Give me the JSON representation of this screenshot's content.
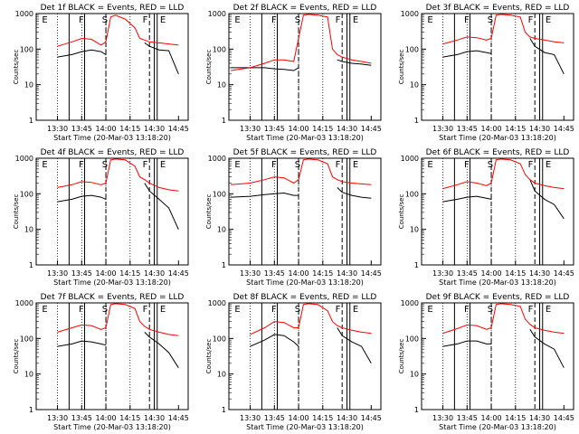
{
  "chart_data": [
    {
      "type": "line",
      "title": "Det 1f BLACK = Events, RED = LLD",
      "xlabel": "Start Time (20-Mar-03 13:18:20)",
      "ylabel": "Counts/sec",
      "yscale": "log",
      "ylim": [
        1,
        1000
      ],
      "ytick_labels": [
        "1",
        "10",
        "100",
        "1000"
      ],
      "xtick_labels": [
        "13:30",
        "13:45",
        "14:00",
        "14:15",
        "14:30",
        "14:45"
      ],
      "markers": [
        "E",
        "F",
        "S",
        "F",
        "E"
      ],
      "x": [
        13.3,
        13.5,
        13.65,
        13.75,
        13.85,
        13.95,
        14.0,
        14.05,
        14.1,
        14.2,
        14.3,
        14.35,
        14.4,
        14.45,
        14.55,
        14.65,
        14.75
      ],
      "series": [
        {
          "name": "BLACK = Events",
          "color": "#000000",
          "values": [
            null,
            60,
            70,
            85,
            95,
            85,
            70,
            null,
            null,
            null,
            null,
            null,
            150,
            120,
            95,
            90,
            20
          ]
        },
        {
          "name": "RED = LLD",
          "color": "#ff0000",
          "values": [
            null,
            120,
            160,
            200,
            190,
            130,
            160,
            800,
            900,
            700,
            400,
            200,
            180,
            160,
            150,
            140,
            130
          ]
        }
      ]
    },
    {
      "type": "line",
      "title": "Det 2f BLACK = Events, RED = LLD",
      "xlabel": "Start Time (20-Mar-03 13:18:20)",
      "ylabel": "Counts/sec",
      "yscale": "log",
      "ylim": [
        1,
        1000
      ],
      "ytick_labels": [
        "1",
        "10",
        "100",
        "1000"
      ],
      "xtick_labels": [
        "13:30",
        "13:45",
        "14:00",
        "14:15",
        "14:30",
        "14:45"
      ],
      "markers": [
        "E",
        "F",
        "S",
        "F",
        "E"
      ],
      "x": [
        13.3,
        13.5,
        13.65,
        13.75,
        13.85,
        13.95,
        14.0,
        14.05,
        14.1,
        14.2,
        14.3,
        14.35,
        14.4,
        14.45,
        14.55,
        14.65,
        14.75
      ],
      "series": [
        {
          "name": "BLACK = Events",
          "color": "#000000",
          "values": [
            30,
            30,
            30,
            28,
            27,
            25,
            30,
            null,
            null,
            null,
            null,
            null,
            50,
            45,
            40,
            38,
            35
          ]
        },
        {
          "name": "RED = LLD",
          "color": "#ff0000",
          "values": [
            25,
            30,
            40,
            50,
            50,
            45,
            200,
            900,
            950,
            900,
            800,
            100,
            70,
            60,
            50,
            45,
            40
          ]
        }
      ]
    },
    {
      "type": "line",
      "title": "Det 3f BLACK = Events, RED = LLD",
      "xlabel": "Start Time (20-Mar-03 13:18:20)",
      "ylabel": "Counts/sec",
      "yscale": "log",
      "ylim": [
        1,
        1000
      ],
      "ytick_labels": [
        "1",
        "10",
        "100",
        "1000"
      ],
      "xtick_labels": [
        "13:30",
        "13:45",
        "14:00",
        "14:15",
        "14:30",
        "14:45"
      ],
      "markers": [
        "E",
        "F",
        "S",
        "F",
        "E"
      ],
      "x": [
        13.3,
        13.5,
        13.65,
        13.75,
        13.85,
        13.95,
        14.0,
        14.05,
        14.1,
        14.2,
        14.3,
        14.35,
        14.4,
        14.45,
        14.55,
        14.65,
        14.75
      ],
      "series": [
        {
          "name": "BLACK = Events",
          "color": "#000000",
          "values": [
            null,
            60,
            70,
            85,
            90,
            80,
            75,
            null,
            null,
            null,
            null,
            null,
            200,
            120,
            80,
            70,
            20
          ]
        },
        {
          "name": "RED = LLD",
          "color": "#ff0000",
          "values": [
            null,
            140,
            180,
            220,
            210,
            180,
            200,
            900,
            950,
            900,
            800,
            300,
            220,
            200,
            180,
            160,
            150
          ]
        }
      ]
    },
    {
      "type": "line",
      "title": "Det 4f BLACK = Events, RED = LLD",
      "xlabel": "Start Time (20-Mar-03 13:18:20)",
      "ylabel": "Counts/sec",
      "yscale": "log",
      "ylim": [
        1,
        1000
      ],
      "ytick_labels": [
        "1",
        "10",
        "100",
        "1000"
      ],
      "xtick_labels": [
        "13:30",
        "13:45",
        "14:00",
        "14:15",
        "14:30",
        "14:45"
      ],
      "markers": [
        "E",
        "F",
        "S",
        "F",
        "E"
      ],
      "x": [
        13.3,
        13.5,
        13.65,
        13.75,
        13.85,
        13.95,
        14.0,
        14.05,
        14.1,
        14.2,
        14.3,
        14.35,
        14.4,
        14.45,
        14.55,
        14.65,
        14.75
      ],
      "series": [
        {
          "name": "BLACK = Events",
          "color": "#000000",
          "values": [
            null,
            60,
            70,
            85,
            90,
            80,
            70,
            null,
            null,
            null,
            null,
            null,
            200,
            120,
            70,
            40,
            10
          ]
        },
        {
          "name": "RED = LLD",
          "color": "#ff0000",
          "values": [
            null,
            150,
            180,
            220,
            210,
            180,
            200,
            900,
            950,
            900,
            600,
            300,
            250,
            200,
            150,
            130,
            120
          ]
        }
      ]
    },
    {
      "type": "line",
      "title": "Det 5f BLACK = Events, RED = LLD",
      "xlabel": "Start Time (20-Mar-03 13:18:20)",
      "ylabel": "Counts/sec",
      "yscale": "log",
      "ylim": [
        1,
        1000
      ],
      "ytick_labels": [
        "1",
        "10",
        "100",
        "1000"
      ],
      "xtick_labels": [
        "13:30",
        "13:45",
        "14:00",
        "14:15",
        "14:30",
        "14:45"
      ],
      "markers": [
        "E",
        "F",
        "S",
        "F",
        "E"
      ],
      "x": [
        13.3,
        13.5,
        13.65,
        13.75,
        13.85,
        13.95,
        14.0,
        14.05,
        14.1,
        14.2,
        14.3,
        14.35,
        14.4,
        14.45,
        14.55,
        14.65,
        14.75
      ],
      "series": [
        {
          "name": "BLACK = Events",
          "color": "#000000",
          "values": [
            80,
            85,
            95,
            100,
            105,
            90,
            90,
            null,
            null,
            null,
            null,
            null,
            150,
            110,
            90,
            80,
            75
          ]
        },
        {
          "name": "RED = LLD",
          "color": "#ff0000",
          "values": [
            180,
            200,
            250,
            300,
            280,
            200,
            250,
            900,
            950,
            900,
            700,
            300,
            250,
            220,
            200,
            190,
            180
          ]
        }
      ]
    },
    {
      "type": "line",
      "title": "Det 6f BLACK = Events, RED = LLD",
      "xlabel": "Start Time (20-Mar-03 13:18:20)",
      "ylabel": "Counts/sec",
      "yscale": "log",
      "ylim": [
        1,
        1000
      ],
      "ytick_labels": [
        "1",
        "10",
        "100",
        "1000"
      ],
      "xtick_labels": [
        "13:30",
        "13:45",
        "14:00",
        "14:15",
        "14:30",
        "14:45"
      ],
      "markers": [
        "E",
        "F",
        "S",
        "F",
        "E"
      ],
      "x": [
        13.3,
        13.5,
        13.65,
        13.75,
        13.85,
        13.95,
        14.0,
        14.05,
        14.1,
        14.2,
        14.3,
        14.35,
        14.4,
        14.45,
        14.55,
        14.65,
        14.75
      ],
      "series": [
        {
          "name": "BLACK = Events",
          "color": "#000000",
          "values": [
            null,
            60,
            70,
            80,
            85,
            75,
            70,
            null,
            null,
            null,
            null,
            null,
            250,
            120,
            70,
            50,
            20
          ]
        },
        {
          "name": "RED = LLD",
          "color": "#ff0000",
          "values": [
            null,
            140,
            180,
            220,
            200,
            170,
            200,
            900,
            950,
            900,
            700,
            350,
            250,
            200,
            170,
            150,
            140
          ]
        }
      ]
    },
    {
      "type": "line",
      "title": "Det 7f BLACK = Events, RED = LLD",
      "xlabel": "Start Time (20-Mar-03 13:18:20)",
      "ylabel": "Counts/sec",
      "yscale": "log",
      "ylim": [
        1,
        1000
      ],
      "ytick_labels": [
        "1",
        "10",
        "100",
        "1000"
      ],
      "xtick_labels": [
        "13:30",
        "13:45",
        "14:00",
        "14:15",
        "14:30",
        "14:45"
      ],
      "markers": [
        "E",
        "F",
        "S",
        "F",
        "E"
      ],
      "x": [
        13.3,
        13.5,
        13.65,
        13.75,
        13.85,
        13.95,
        14.0,
        14.05,
        14.1,
        14.2,
        14.3,
        14.35,
        14.4,
        14.45,
        14.55,
        14.65,
        14.75
      ],
      "series": [
        {
          "name": "BLACK = Events",
          "color": "#000000",
          "values": [
            null,
            60,
            70,
            85,
            80,
            70,
            65,
            null,
            null,
            null,
            null,
            null,
            150,
            110,
            70,
            40,
            15
          ]
        },
        {
          "name": "RED = LLD",
          "color": "#ff0000",
          "values": [
            null,
            150,
            200,
            240,
            230,
            180,
            200,
            900,
            950,
            900,
            700,
            300,
            220,
            180,
            150,
            130,
            120
          ]
        }
      ]
    },
    {
      "type": "line",
      "title": "Det 8f BLACK = Events, RED = LLD",
      "xlabel": "Start Time (20-Mar-03 13:18:20)",
      "ylabel": "Counts/sec",
      "yscale": "log",
      "ylim": [
        1,
        1000
      ],
      "ytick_labels": [
        "1",
        "10",
        "100",
        "1000"
      ],
      "xtick_labels": [
        "13:30",
        "13:45",
        "14:00",
        "14:15",
        "14:30",
        "14:45"
      ],
      "markers": [
        "E",
        "F",
        "S",
        "F",
        "E"
      ],
      "x": [
        13.3,
        13.5,
        13.65,
        13.75,
        13.85,
        13.95,
        14.0,
        14.05,
        14.1,
        14.2,
        14.3,
        14.35,
        14.4,
        14.45,
        14.55,
        14.65,
        14.75
      ],
      "series": [
        {
          "name": "BLACK = Events",
          "color": "#000000",
          "values": [
            null,
            60,
            90,
            130,
            120,
            80,
            60,
            null,
            null,
            null,
            null,
            null,
            200,
            120,
            80,
            60,
            20
          ]
        },
        {
          "name": "RED = LLD",
          "color": "#ff0000",
          "values": [
            null,
            130,
            200,
            300,
            280,
            200,
            200,
            900,
            950,
            900,
            600,
            300,
            230,
            200,
            170,
            150,
            140
          ]
        }
      ]
    },
    {
      "type": "line",
      "title": "Det 9f BLACK = Events, RED = LLD",
      "xlabel": "Start Time (20-Mar-03 13:18:20)",
      "ylabel": "Counts/sec",
      "yscale": "log",
      "ylim": [
        1,
        1000
      ],
      "ytick_labels": [
        "1",
        "10",
        "100",
        "1000"
      ],
      "xtick_labels": [
        "13:30",
        "13:45",
        "14:00",
        "14:15",
        "14:30",
        "14:45"
      ],
      "markers": [
        "E",
        "F",
        "S",
        "F",
        "E"
      ],
      "x": [
        13.3,
        13.5,
        13.65,
        13.75,
        13.85,
        13.95,
        14.0,
        14.05,
        14.1,
        14.2,
        14.3,
        14.35,
        14.4,
        14.45,
        14.55,
        14.65,
        14.75
      ],
      "series": [
        {
          "name": "BLACK = Events",
          "color": "#000000",
          "values": [
            null,
            60,
            70,
            85,
            85,
            70,
            70,
            null,
            null,
            null,
            null,
            null,
            180,
            110,
            70,
            50,
            15
          ]
        },
        {
          "name": "RED = LLD",
          "color": "#ff0000",
          "values": [
            null,
            140,
            190,
            240,
            230,
            180,
            200,
            900,
            950,
            900,
            800,
            350,
            250,
            200,
            170,
            150,
            140
          ]
        }
      ]
    }
  ]
}
